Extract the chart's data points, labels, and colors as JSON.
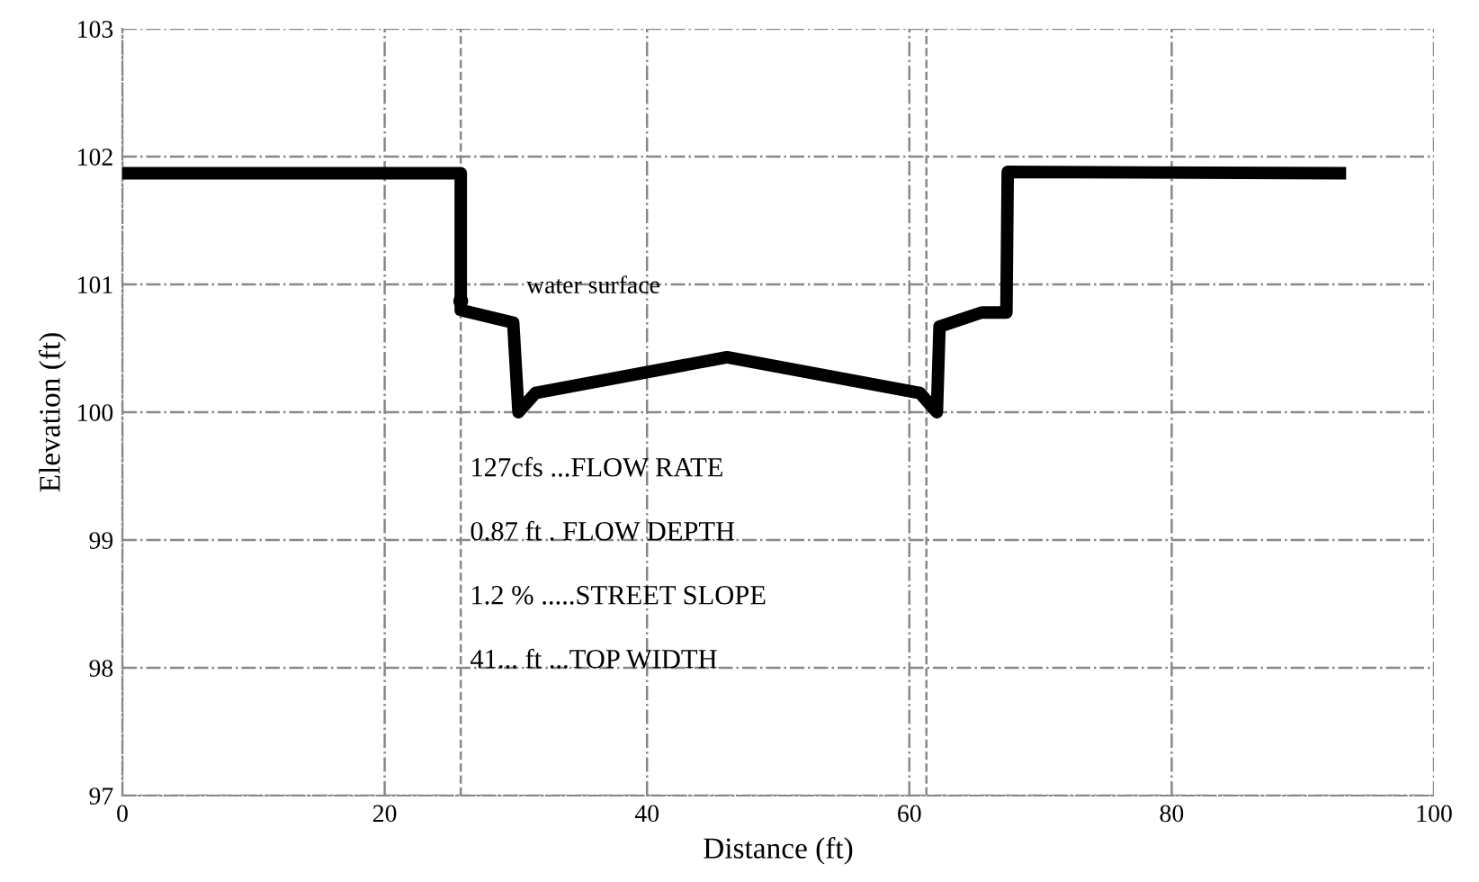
{
  "chart_data": {
    "type": "line",
    "xlabel": "Distance (ft)",
    "ylabel": "Elevation (ft)",
    "x": [
      0,
      25.8,
      25.8,
      29.8,
      30.2,
      31.5,
      46.1,
      60.8,
      62.1,
      62.3,
      65.5,
      67.4,
      67.5,
      93.3
    ],
    "series": [
      {
        "color": "#000000",
        "values": [
          101.87,
          101.87,
          100.8,
          100.7,
          100.0,
          100.15,
          100.43,
          100.15,
          100.0,
          100.67,
          100.78,
          100.78,
          101.88,
          101.87
        ]
      }
    ],
    "xlim": [
      0,
      100
    ],
    "ylim": [
      97,
      103
    ],
    "xticks": [
      0,
      20,
      40,
      60,
      80,
      100
    ],
    "yticks": [
      97,
      98,
      99,
      100,
      101,
      102,
      103
    ],
    "grid": true,
    "marker": "none",
    "line_style": "solid",
    "ref_lines": [
      {
        "axis": "x",
        "value": 25.8,
        "label": null,
        "color": "#888888",
        "line_style": "dashed"
      },
      {
        "axis": "x",
        "value": 61.3,
        "label": null,
        "color": "#888888",
        "line_style": "dashed"
      }
    ],
    "annotations": [
      {
        "text": "water surface",
        "x": 25.8,
        "y": 100.87
      },
      "127cfs ...FLOW RATE",
      "0.87 ft . FLOW DEPTH",
      "1.2 % .....STREET SLOPE",
      "41... ft ...TOP WIDTH"
    ]
  }
}
